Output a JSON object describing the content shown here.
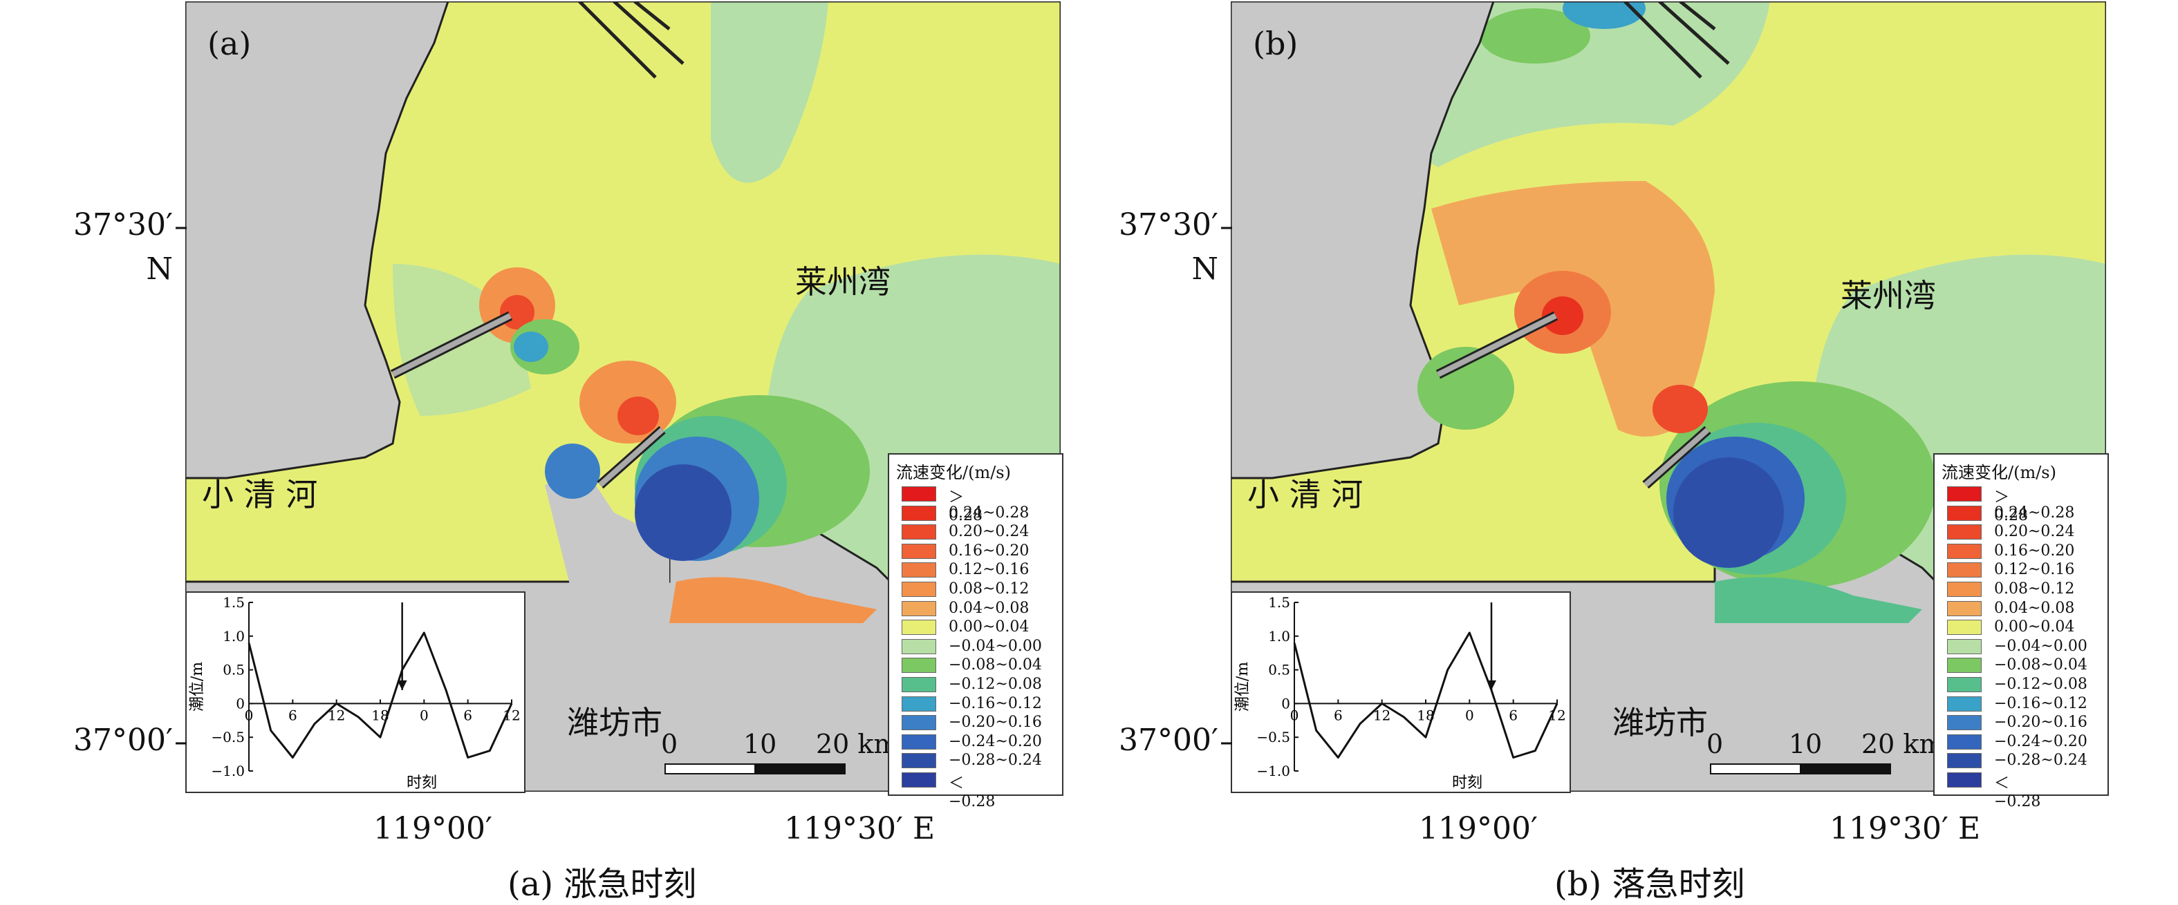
{
  "panels": [
    {
      "id": "a",
      "label": "(a)",
      "caption": "(a) 涨急时刻",
      "place_laizhou": "莱州湾",
      "place_xiaoqing": "小 清 河",
      "place_weifang": "潍坊市",
      "scale_labels": [
        "0",
        "10",
        "20 km"
      ],
      "tide_marker_x": 21
    },
    {
      "id": "b",
      "label": "(b)",
      "caption": "(b) 落急时刻",
      "place_laizhou": "莱州湾",
      "place_xiaoqing": "小 清 河",
      "place_weifang": "潍坊市",
      "scale_labels": [
        "0",
        "10",
        "20 km"
      ],
      "tide_marker_x": 27
    }
  ],
  "axes": {
    "lat_labels": [
      "37°30′",
      "N",
      "37°00′"
    ],
    "lon_labels": [
      "119°00′",
      "119°30′ E"
    ]
  },
  "legend": {
    "title": "流速变化/(m/s)",
    "items": [
      {
        "label": "＞0.28",
        "color": "#e31a1c"
      },
      {
        "label": "0.24~0.28",
        "color": "#e8321f"
      },
      {
        "label": "0.20~0.24",
        "color": "#ec4a2a"
      },
      {
        "label": "0.16~0.20",
        "color": "#ef6336"
      },
      {
        "label": "0.12~0.16",
        "color": "#f07b42"
      },
      {
        "label": "0.08~0.12",
        "color": "#f3924b"
      },
      {
        "label": "0.04~0.08",
        "color": "#f2a85a"
      },
      {
        "label": "0.00~0.04",
        "color": "#e8ee74"
      },
      {
        "label": "−0.04~0.00",
        "color": "#b7dfa5"
      },
      {
        "label": "−0.08~0.04",
        "color": "#7cc862"
      },
      {
        "label": "−0.12~0.08",
        "color": "#56bf8c"
      },
      {
        "label": "−0.16~0.12",
        "color": "#3aa1c9"
      },
      {
        "label": "−0.20~0.16",
        "color": "#3c7fc6"
      },
      {
        "label": "−0.24~0.20",
        "color": "#3466bd"
      },
      {
        "label": "−0.28~0.24",
        "color": "#2e4fa8"
      },
      {
        "label": "＜−0.28",
        "color": "#2c3e9e"
      }
    ]
  },
  "tide_inset": {
    "ylabel": "潮位/m",
    "xlabel": "时刻",
    "yticks": [
      "1.5",
      "1.0",
      "0.5",
      "0",
      "−0.5",
      "−1.0"
    ],
    "xticks": [
      "0",
      "6",
      "12",
      "18",
      "0",
      "6",
      "12"
    ],
    "chart_data": {
      "type": "line",
      "x": [
        0,
        3,
        6,
        9,
        12,
        15,
        18,
        21,
        24,
        27,
        30,
        33,
        36
      ],
      "values": [
        0.9,
        -0.4,
        -0.8,
        -0.3,
        0.0,
        -0.2,
        -0.5,
        0.5,
        1.05,
        0.2,
        -0.8,
        -0.7,
        0.0
      ],
      "ylim": [
        -1.0,
        1.5
      ],
      "xlim": [
        0,
        36
      ]
    }
  },
  "colors": {
    "land": "#c8c8c8",
    "sea_base": "#e5ee74",
    "pale_green": "#b5dfa8"
  }
}
